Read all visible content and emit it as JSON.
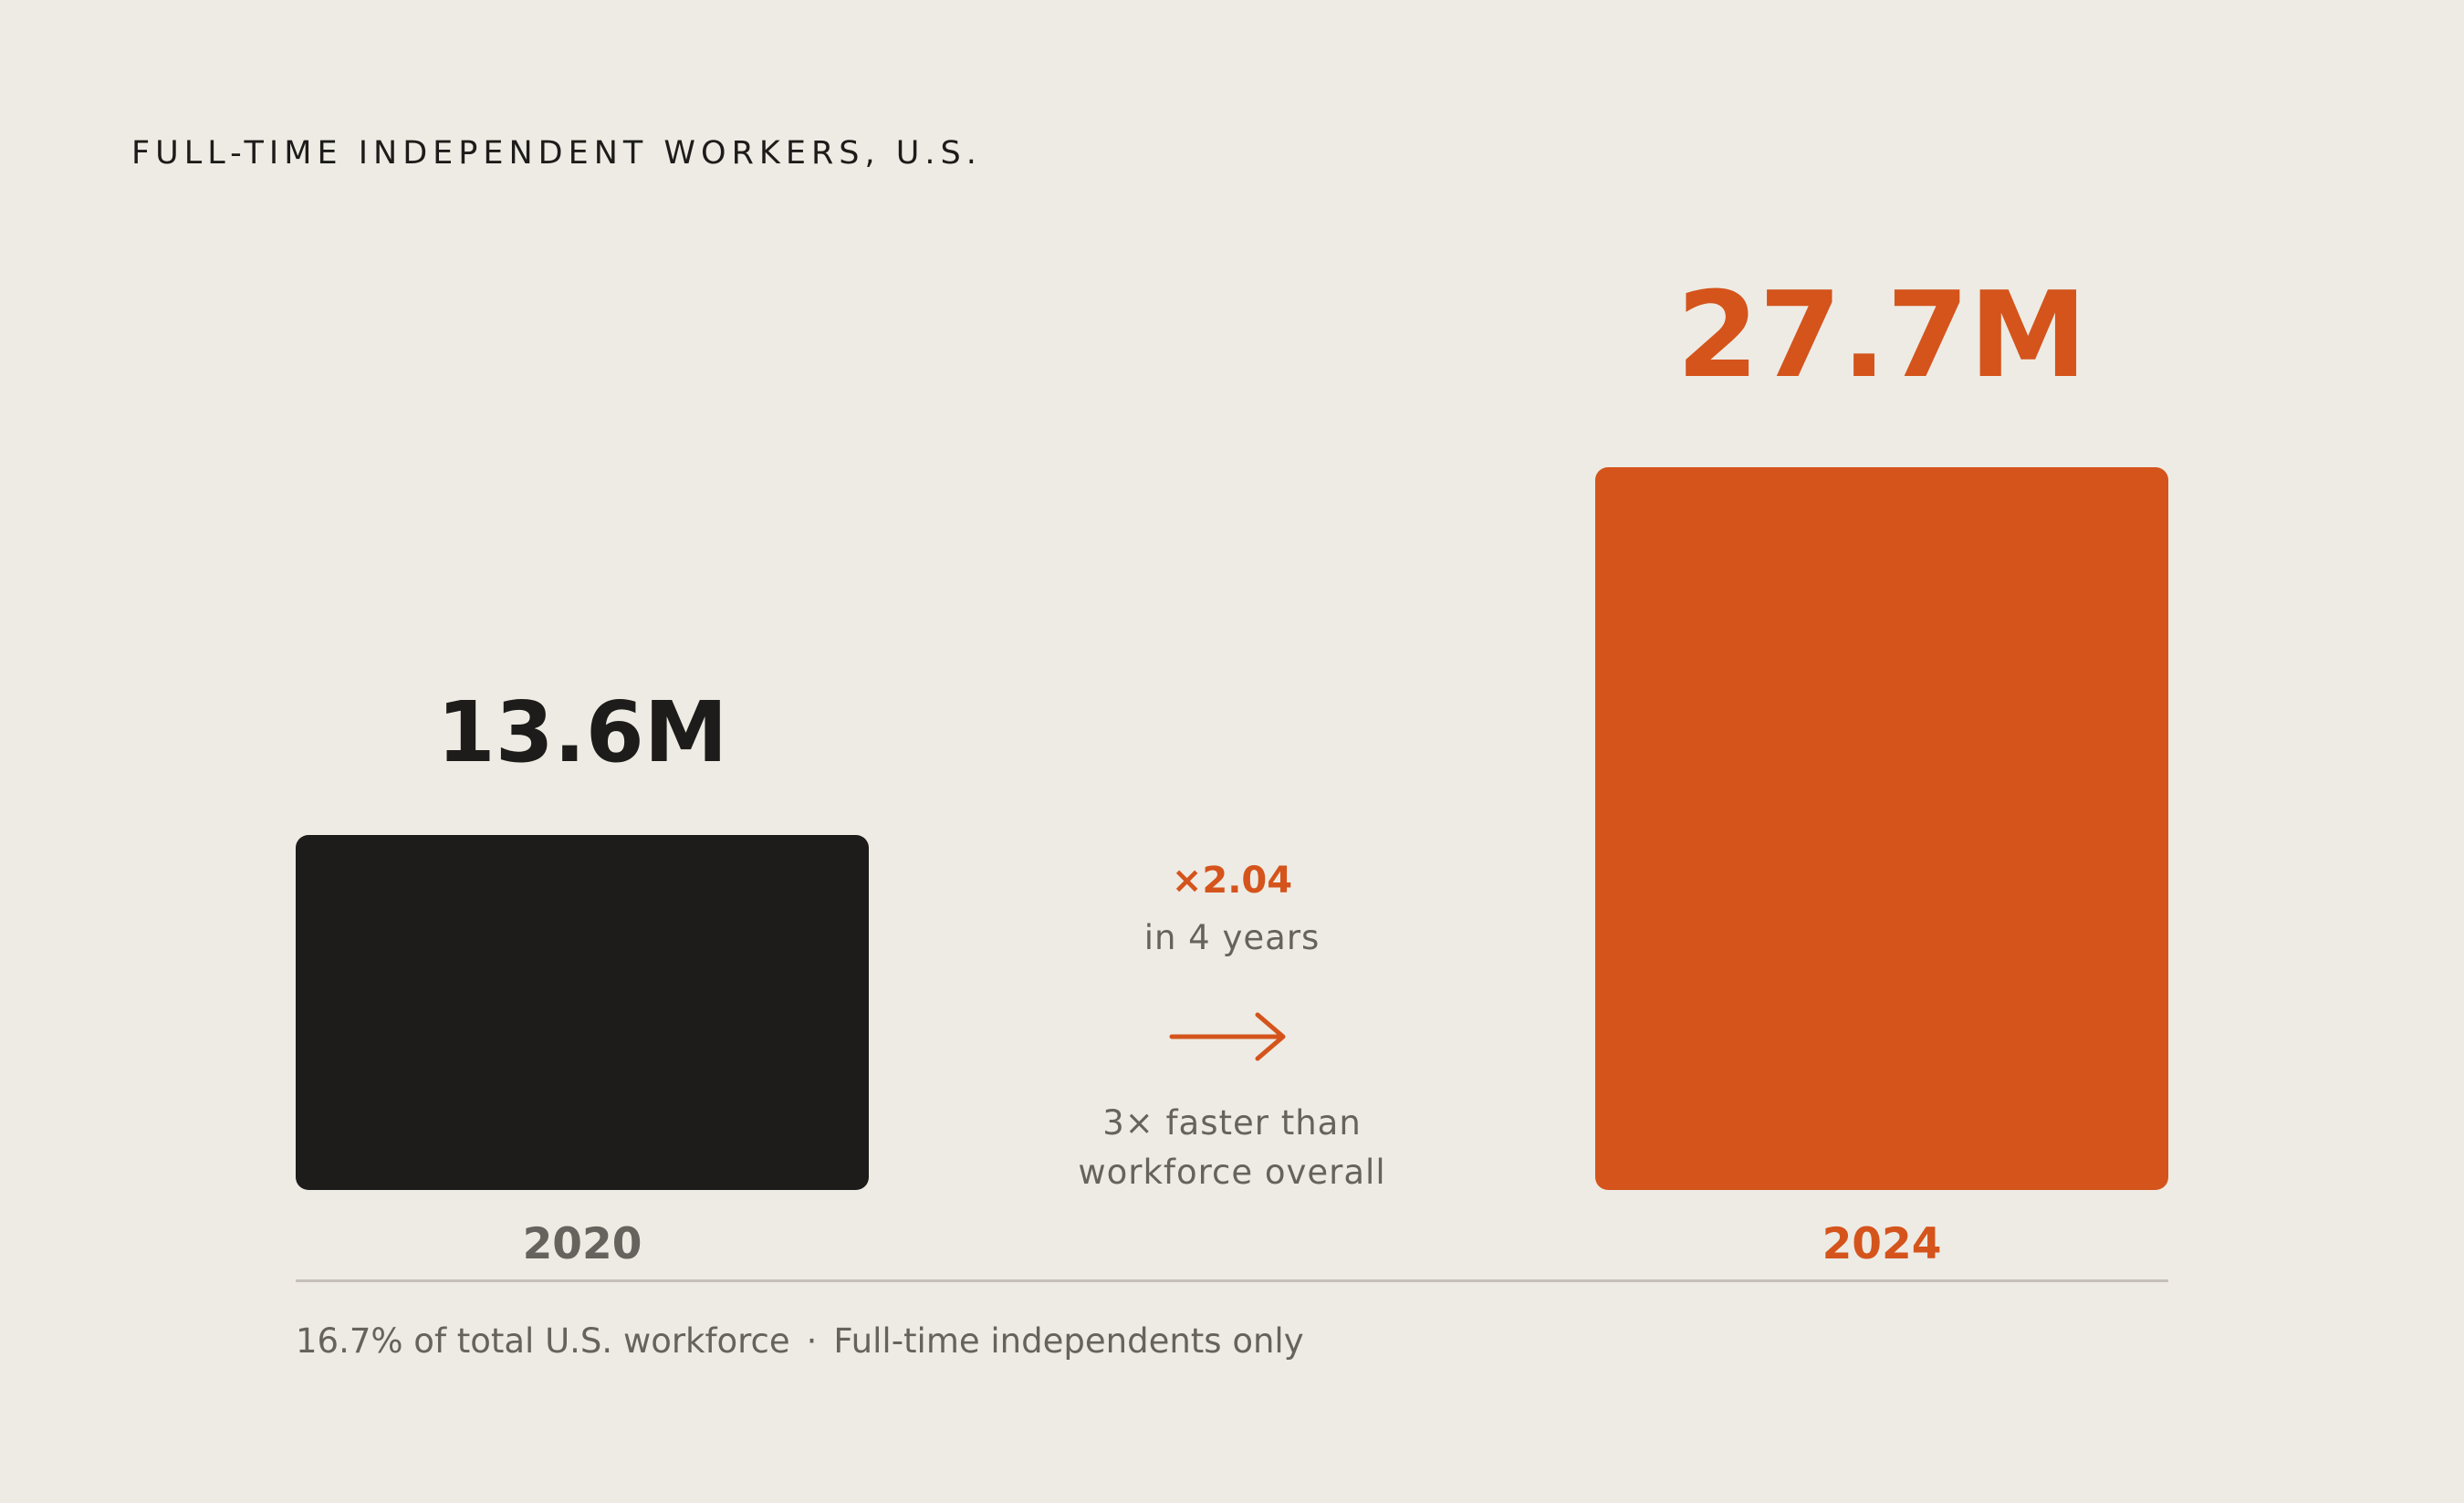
{
  "chart_data": {
    "type": "bar",
    "title": "FULL-TIME INDEPENDENT WORKERS, U.S.",
    "categories": [
      "2020",
      "2024"
    ],
    "values": [
      13.6,
      27.7
    ],
    "value_labels": [
      "13.6M",
      "27.7M"
    ],
    "unit": "M",
    "bar_colors": [
      "#1d1c1a",
      "#d4541c"
    ],
    "category_label_colors": [
      "#66635e",
      "#d4541c"
    ],
    "value_label_colors": [
      "#1d1c1a",
      "#d4541c"
    ],
    "grid": false,
    "legend": "none",
    "annotation": {
      "multiplier": "×2.04",
      "period": "in 4 years",
      "arrow_icon": "arrow-right-icon",
      "comparison_line1": "3× faster than",
      "comparison_line2": "workforce overall"
    },
    "footnote": {
      "left": "16.7% of total U.S. workforce",
      "separator": "·",
      "right": "Full-time independents only"
    }
  }
}
